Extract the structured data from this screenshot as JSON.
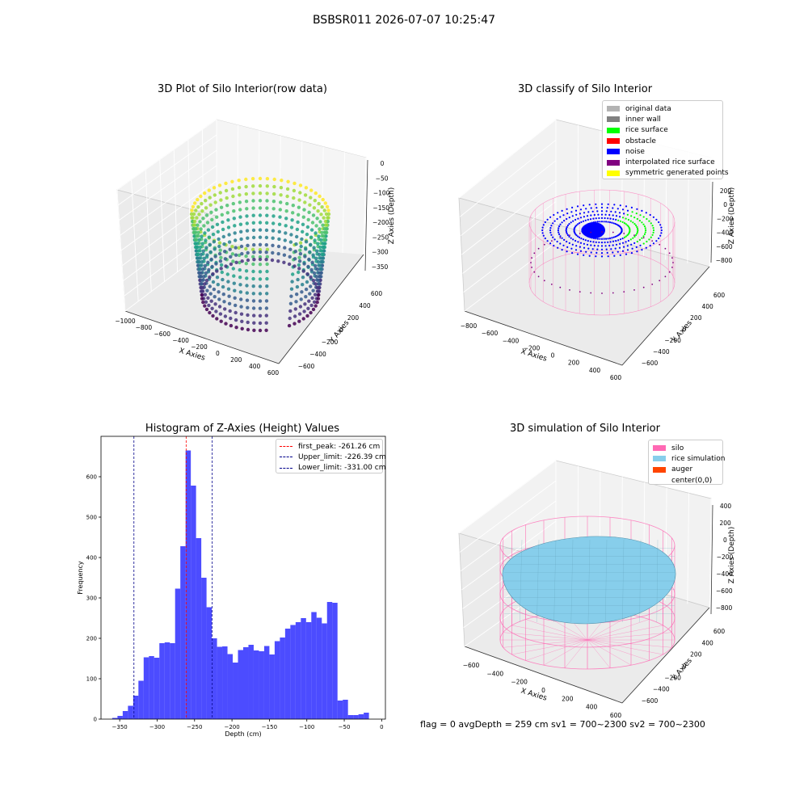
{
  "figure": {
    "title": "BSBSR011 2026-07-07 10:25:47"
  },
  "status_line": "flag = 0     avgDepth = 259 cm  sv1 = 700~2300  sv2 = 700~2300",
  "chart_data": [
    {
      "id": "raw",
      "type": "scatter3d",
      "title": "3D Plot of Silo Interior(row data)",
      "xlabel": "X Axies",
      "ylabel": "Y Axies",
      "zlabel": "Z Axies (Depth)",
      "xticks": [
        "−1000",
        "−800",
        "−600",
        "−400",
        "−200",
        "0",
        "200",
        "400",
        "600"
      ],
      "yticks": [
        "−600",
        "−400",
        "−200",
        "0",
        "200",
        "400",
        "600"
      ],
      "zticks": [
        "0",
        "−50",
        "−100",
        "−150",
        "−200",
        "−250",
        "−300",
        "−350"
      ],
      "colormap": "viridis"
    },
    {
      "id": "classify",
      "type": "scatter3d",
      "title": "3D classify of Silo Interior",
      "xlabel": "X Axies",
      "ylabel": "Y Axies",
      "zlabel": "Z Axies (Depth)",
      "xticks": [
        "−800",
        "−600",
        "−400",
        "−200",
        "0",
        "200",
        "400",
        "600"
      ],
      "yticks": [
        "−600",
        "−400",
        "−200",
        "0",
        "200",
        "400",
        "600"
      ],
      "zticks": [
        "200",
        "0",
        "−200",
        "−400",
        "−600",
        "−800"
      ],
      "legend": [
        {
          "label": "original data",
          "color": "#b3b3b3"
        },
        {
          "label": "inner wall",
          "color": "#808080"
        },
        {
          "label": "rice surface",
          "color": "#00ff00"
        },
        {
          "label": "obstacle",
          "color": "#ff0000"
        },
        {
          "label": "noise",
          "color": "#0000ff"
        },
        {
          "label": "interpolated rice surface",
          "color": "#800080"
        },
        {
          "label": "symmetric generated points",
          "color": "#ffff00"
        }
      ]
    },
    {
      "id": "hist",
      "type": "bar",
      "title": "Histogram of Z-Axies (Height) Values",
      "xlabel": "Depth (cm)",
      "ylabel": "Frequency",
      "xlim": [
        -375,
        5
      ],
      "ylim": [
        0,
        700
      ],
      "xticks": [
        -350,
        -300,
        -250,
        -200,
        -150,
        -100,
        -50,
        0
      ],
      "yticks": [
        0,
        100,
        200,
        300,
        400,
        500,
        600
      ],
      "bin_start": -360,
      "bin_width": 7,
      "color": "#0000ff",
      "values": [
        3,
        8,
        20,
        33,
        58,
        95,
        153,
        156,
        152,
        188,
        190,
        188,
        323,
        428,
        665,
        578,
        448,
        350,
        277,
        200,
        179,
        180,
        161,
        140,
        171,
        178,
        184,
        170,
        168,
        181,
        160,
        193,
        202,
        224,
        233,
        240,
        250,
        240,
        265,
        251,
        237,
        290,
        288,
        46,
        48,
        10,
        10,
        12,
        16,
        0
      ],
      "vlines": [
        {
          "label": "first_peak: -261.26 cm",
          "x": -261.26,
          "color": "#ff0000"
        },
        {
          "label": "Upper_limit: -226.39 cm",
          "x": -226.39,
          "color": "#00008b"
        },
        {
          "label": "Lower_limit: -331.00 cm",
          "x": -331.0,
          "color": "#00008b"
        }
      ]
    },
    {
      "id": "sim",
      "type": "surface3d",
      "title": "3D simulation of Silo Interior",
      "xlabel": "X Axies",
      "ylabel": "Y Axies",
      "zlabel": "Z Axies (Depth)",
      "xticks": [
        "−600",
        "−400",
        "−200",
        "0",
        "200",
        "400",
        "600"
      ],
      "yticks": [
        "−600",
        "−400",
        "−200",
        "0",
        "200",
        "400",
        "600"
      ],
      "zticks": [
        "400",
        "200",
        "0",
        "−200",
        "−400",
        "−600",
        "−800"
      ],
      "legend": [
        {
          "label": "silo",
          "color": "#ff69b4"
        },
        {
          "label": "rice simulation",
          "color": "#87ceeb"
        },
        {
          "label": "auger",
          "color": "#ff4500"
        },
        {
          "label": "center(0,0)",
          "color": "#ffffff"
        }
      ]
    }
  ]
}
